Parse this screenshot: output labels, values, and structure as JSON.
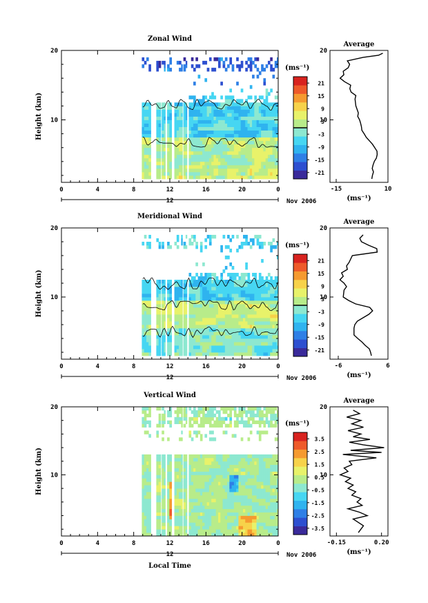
{
  "x_axis": {
    "ticks": [
      "0",
      "4",
      "8",
      "12",
      "16",
      "20",
      "0"
    ],
    "tick_values": [
      0,
      4,
      8,
      12,
      16,
      20,
      24
    ],
    "date_day": "12",
    "date_text": "Nov 2006",
    "xlabel": "Local Time"
  },
  "colormap": [
    "#3a2a9a",
    "#2d4fd0",
    "#2e7fe6",
    "#2fb3ef",
    "#46d6f2",
    "#8de8d0",
    "#b8ec8a",
    "#e8f26a",
    "#f7d24a",
    "#f59a30",
    "#ee5a2a",
    "#d8231f"
  ],
  "chart_data": [
    {
      "type": "heatmap",
      "title": "Zonal Wind",
      "ylabel": "Height (km)",
      "ylim": [
        1,
        20
      ],
      "y_ticks": [
        "10",
        "20"
      ],
      "y_tick_values": [
        10,
        20
      ],
      "data_segments_hours": [
        [
          8.9,
          9.9
        ],
        [
          10.5,
          11.0
        ],
        [
          11.1,
          11.5
        ],
        [
          11.7,
          12.2
        ],
        [
          12.5,
          13.4
        ],
        [
          13.5,
          13.9
        ],
        [
          14.1,
          24
        ]
      ],
      "colorbar": {
        "unit": "(ms⁻¹)",
        "ticks": [
          "21",
          "15",
          "9",
          "3",
          "-3",
          "-9",
          "-15",
          "-21"
        ],
        "range": [
          -24,
          24
        ],
        "zero_contour": true
      },
      "average": {
        "title": "Average",
        "xlabel": "(ms⁻¹)",
        "xlim": [
          -18,
          10
        ],
        "x_ticks": [
          "-15",
          "10"
        ],
        "x_tick_values": [
          -15,
          10
        ],
        "y_ticks": [
          "10",
          "20"
        ],
        "profile": [
          [
            1.5,
            2.2
          ],
          [
            2.0,
            2.5
          ],
          [
            2.5,
            3.0
          ],
          [
            3.0,
            2.4
          ],
          [
            3.5,
            2.8
          ],
          [
            4.0,
            3.4
          ],
          [
            4.5,
            4.4
          ],
          [
            5.0,
            4.8
          ],
          [
            5.5,
            4.7
          ],
          [
            6.0,
            3.6
          ],
          [
            6.5,
            2.5
          ],
          [
            7.0,
            1.0
          ],
          [
            7.5,
            -0.5
          ],
          [
            8.0,
            -1.5
          ],
          [
            8.5,
            -2.6
          ],
          [
            9.0,
            -2.8
          ],
          [
            9.5,
            -3.2
          ],
          [
            10.0,
            -3.7
          ],
          [
            10.5,
            -4.6
          ],
          [
            11.0,
            -4.3
          ],
          [
            11.5,
            -4.9
          ],
          [
            12.0,
            -5.5
          ],
          [
            12.5,
            -5.7
          ],
          [
            13.0,
            -5.9
          ],
          [
            13.5,
            -5.5
          ],
          [
            14.0,
            -7.8
          ],
          [
            14.5,
            -8.4
          ],
          [
            15.0,
            -8.0
          ],
          [
            15.5,
            -11.0
          ],
          [
            16.0,
            -13.1
          ],
          [
            16.5,
            -11.3
          ],
          [
            17.0,
            -11.6
          ],
          [
            17.5,
            -9.2
          ],
          [
            18.0,
            -8.5
          ],
          [
            18.5,
            -9.6
          ],
          [
            19.0,
            -2.0
          ],
          [
            19.3,
            5.5
          ],
          [
            19.6,
            7.5
          ]
        ]
      }
    },
    {
      "type": "heatmap",
      "title": "Meridional Wind",
      "ylabel": "Height (km)",
      "ylim": [
        1,
        20
      ],
      "y_ticks": [
        "10",
        "20"
      ],
      "y_tick_values": [
        10,
        20
      ],
      "data_segments_hours": [
        [
          8.9,
          9.9
        ],
        [
          10.5,
          11.0
        ],
        [
          11.1,
          11.5
        ],
        [
          11.7,
          12.2
        ],
        [
          12.5,
          13.4
        ],
        [
          13.5,
          13.9
        ],
        [
          14.1,
          24
        ]
      ],
      "colorbar": {
        "unit": "(ms⁻¹)",
        "ticks": [
          "21",
          "15",
          "9",
          "3",
          "-3",
          "-9",
          "-15",
          "-21"
        ],
        "range": [
          -24,
          24
        ],
        "zero_contour": true
      },
      "average": {
        "title": "Average",
        "xlabel": "(ms⁻¹)",
        "xlim": [
          -8,
          6
        ],
        "x_ticks": [
          "-6",
          "6"
        ],
        "x_tick_values": [
          -6,
          6
        ],
        "y_ticks": [
          "10",
          "20"
        ],
        "profile": [
          [
            1.5,
            2.0
          ],
          [
            2.0,
            1.8
          ],
          [
            2.5,
            1.5
          ],
          [
            3.0,
            0.5
          ],
          [
            3.5,
            -0.3
          ],
          [
            4.0,
            -1.3
          ],
          [
            4.5,
            -2.2
          ],
          [
            5.0,
            -2.2
          ],
          [
            5.5,
            -2.2
          ],
          [
            6.0,
            -2.0
          ],
          [
            6.5,
            -1.4
          ],
          [
            7.0,
            0.0
          ],
          [
            7.5,
            1.4
          ],
          [
            8.0,
            2.3
          ],
          [
            8.5,
            1.6
          ],
          [
            9.0,
            -1.8
          ],
          [
            9.5,
            -3.5
          ],
          [
            10.0,
            -4.8
          ],
          [
            10.5,
            -4.7
          ],
          [
            11.0,
            -4.6
          ],
          [
            11.5,
            -4.0
          ],
          [
            12.0,
            -4.6
          ],
          [
            12.5,
            -5.6
          ],
          [
            13.0,
            -4.8
          ],
          [
            13.5,
            -5.2
          ],
          [
            14.0,
            -3.8
          ],
          [
            14.5,
            -4.0
          ],
          [
            15.0,
            -3.4
          ],
          [
            15.5,
            -3.0
          ],
          [
            16.0,
            -2.6
          ],
          [
            16.5,
            3.4
          ],
          [
            17.0,
            3.3
          ],
          [
            17.5,
            1.3
          ],
          [
            18.0,
            -0.4
          ],
          [
            18.5,
            -0.8
          ],
          [
            19.0,
            0.0
          ]
        ]
      }
    },
    {
      "type": "heatmap",
      "title": "Vertical Wind",
      "ylabel": "Height (km)",
      "ylim": [
        1,
        20
      ],
      "y_ticks": [
        "10",
        "20"
      ],
      "y_tick_values": [
        10,
        20
      ],
      "data_segments_hours": [
        [
          8.9,
          9.9
        ],
        [
          10.5,
          11.0
        ],
        [
          11.1,
          11.5
        ],
        [
          11.7,
          12.2
        ],
        [
          12.5,
          13.4
        ],
        [
          13.5,
          13.9
        ],
        [
          14.1,
          24
        ]
      ],
      "colorbar": {
        "unit": "(ms⁻¹)",
        "ticks": [
          "3.5",
          "2.5",
          "1.5",
          "0.5",
          "-0.5",
          "-1.5",
          "-2.5",
          "-3.5"
        ],
        "range": [
          -4,
          4
        ],
        "zero_contour": false
      },
      "average": {
        "title": "Average",
        "xlabel": "(ms⁻¹)",
        "xlim": [
          -0.2,
          0.25
        ],
        "x_ticks": [
          "-0.15",
          "0.20"
        ],
        "x_tick_values": [
          -0.15,
          0.2
        ],
        "y_ticks": [
          "10",
          "20"
        ],
        "profile": [
          [
            1.5,
            0.02
          ],
          [
            2.5,
            0.06
          ],
          [
            3.5,
            -0.02
          ],
          [
            4.0,
            0.09
          ],
          [
            4.5,
            0.03
          ],
          [
            5.0,
            -0.06
          ],
          [
            5.5,
            0.05
          ],
          [
            6.0,
            0.01
          ],
          [
            6.5,
            0.04
          ],
          [
            7.0,
            -0.03
          ],
          [
            7.5,
            0.0
          ],
          [
            8.0,
            -0.06
          ],
          [
            8.5,
            -0.02
          ],
          [
            9.0,
            -0.08
          ],
          [
            9.5,
            -0.04
          ],
          [
            10.0,
            -0.12
          ],
          [
            10.5,
            -0.06
          ],
          [
            11.0,
            -0.09
          ],
          [
            11.5,
            -0.03
          ],
          [
            12.0,
            -0.05
          ],
          [
            12.5,
            0.16
          ],
          [
            13.0,
            -0.1
          ],
          [
            13.3,
            0.2
          ],
          [
            13.6,
            -0.04
          ],
          [
            14.0,
            0.22
          ],
          [
            14.4,
            0.06
          ],
          [
            14.8,
            -0.05
          ],
          [
            15.2,
            0.11
          ],
          [
            15.6,
            -0.02
          ],
          [
            16.0,
            0.04
          ],
          [
            16.5,
            -0.06
          ],
          [
            17.0,
            0.06
          ],
          [
            17.5,
            -0.03
          ],
          [
            18.0,
            0.04
          ],
          [
            18.5,
            -0.07
          ],
          [
            19.0,
            0.03
          ],
          [
            19.5,
            -0.02
          ]
        ]
      }
    }
  ]
}
